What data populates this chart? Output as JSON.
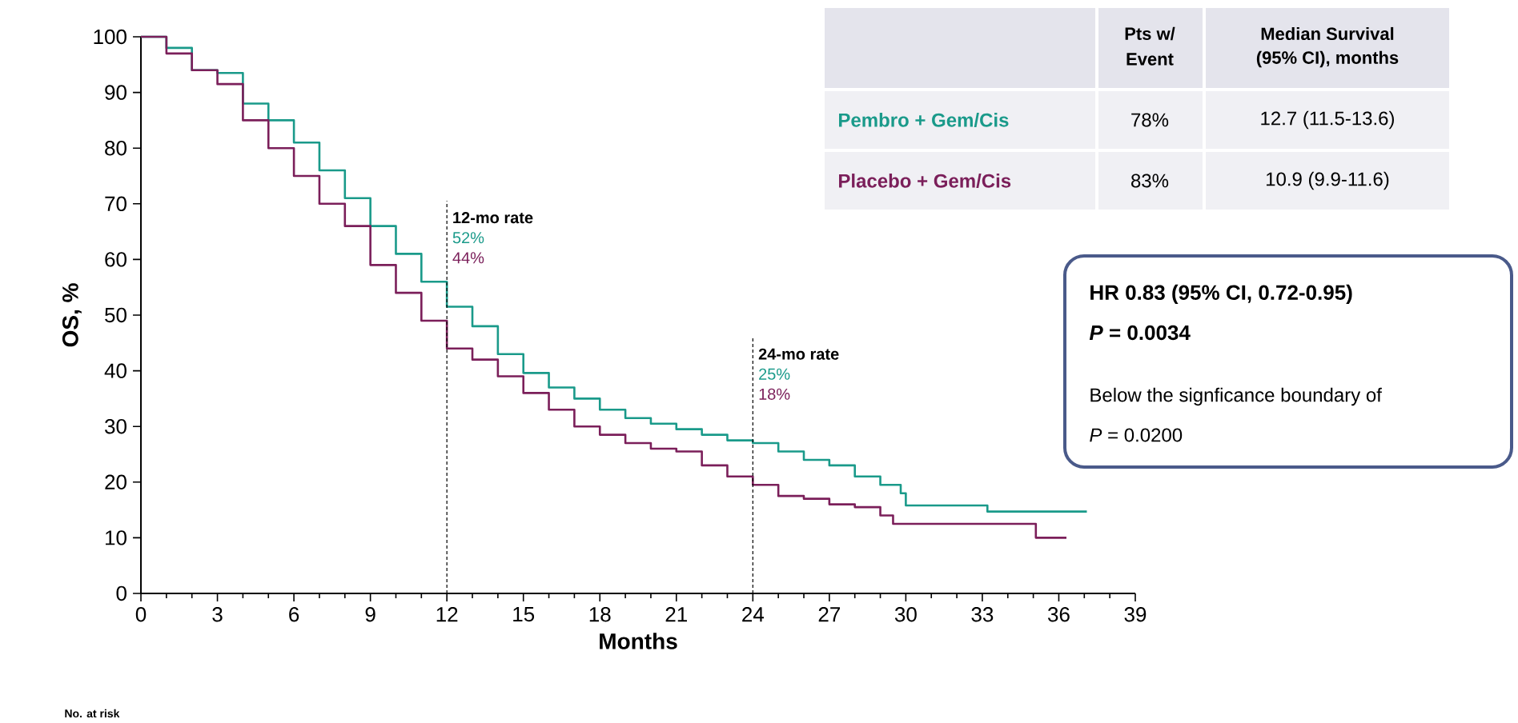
{
  "chart_data": {
    "type": "step",
    "xlabel": "Months",
    "ylabel": "OS, %",
    "xlim": [
      0,
      39
    ],
    "xticks": [
      0,
      3,
      6,
      9,
      12,
      15,
      18,
      21,
      24,
      27,
      30,
      33,
      36,
      39
    ],
    "ylim": [
      0,
      100
    ],
    "yticks": [
      0,
      10,
      20,
      30,
      40,
      50,
      60,
      70,
      80,
      90,
      100
    ],
    "series": [
      {
        "name": "Pembro + Gem/Cis",
        "color": "#1a9a8a",
        "x": [
          0,
          1,
          2,
          3,
          4,
          5,
          6,
          7,
          8,
          9,
          10,
          11,
          12,
          13,
          14,
          15,
          16,
          17,
          18,
          19,
          20,
          21,
          22,
          23,
          24,
          25,
          26,
          27,
          28,
          29,
          29.8,
          30,
          33,
          33.2,
          37.1
        ],
        "values": [
          100,
          98,
          94,
          93.5,
          88,
          85,
          81,
          76,
          71,
          66,
          61,
          56,
          51.5,
          48,
          43,
          39.6,
          37,
          35,
          33,
          31.5,
          30.5,
          29.5,
          28.5,
          27.5,
          27,
          25.5,
          24,
          23,
          21,
          19.5,
          18,
          15.8,
          15.8,
          14.7,
          14.7
        ]
      },
      {
        "name": "Placebo + Gem/Cis",
        "color": "#7b1f5a",
        "x": [
          0,
          1,
          2,
          3,
          4,
          5,
          6,
          7,
          8,
          9,
          10,
          11,
          12,
          13,
          14,
          15,
          16,
          17,
          18,
          19,
          20,
          21,
          22,
          23,
          24,
          25,
          26,
          27,
          28,
          29,
          29.5,
          35,
          35.1,
          36.3
        ],
        "values": [
          100,
          97,
          94,
          91.5,
          85,
          80,
          75,
          70,
          66,
          59,
          54,
          49,
          44,
          42,
          39,
          36,
          33,
          30,
          28.5,
          27,
          26,
          25.5,
          23,
          21,
          19.5,
          17.5,
          17,
          16,
          15.5,
          14,
          12.5,
          12.5,
          10,
          10
        ]
      }
    ],
    "ref_lines": [
      {
        "axis": "x",
        "value": 12,
        "label": "12-mo rate",
        "line_style": "dashed"
      },
      {
        "axis": "x",
        "value": 24,
        "label": "24-mo rate",
        "line_style": "dashed"
      }
    ],
    "annotations": [
      "Pts w/",
      "Event",
      "Median Survival",
      "(95% CI), months",
      "78%",
      "12.7 (11.5-13.6)",
      "83%",
      "10.9 (9.9-11.6)",
      "HR 0.83 (95% CI, 0.72-0.95)",
      "*P* = 0.0034",
      "Below the signficance boundary of",
      "*P* = 0.0200",
      "No. at risk",
      "52%",
      "44%",
      "25%",
      "18%"
    ]
  }
}
